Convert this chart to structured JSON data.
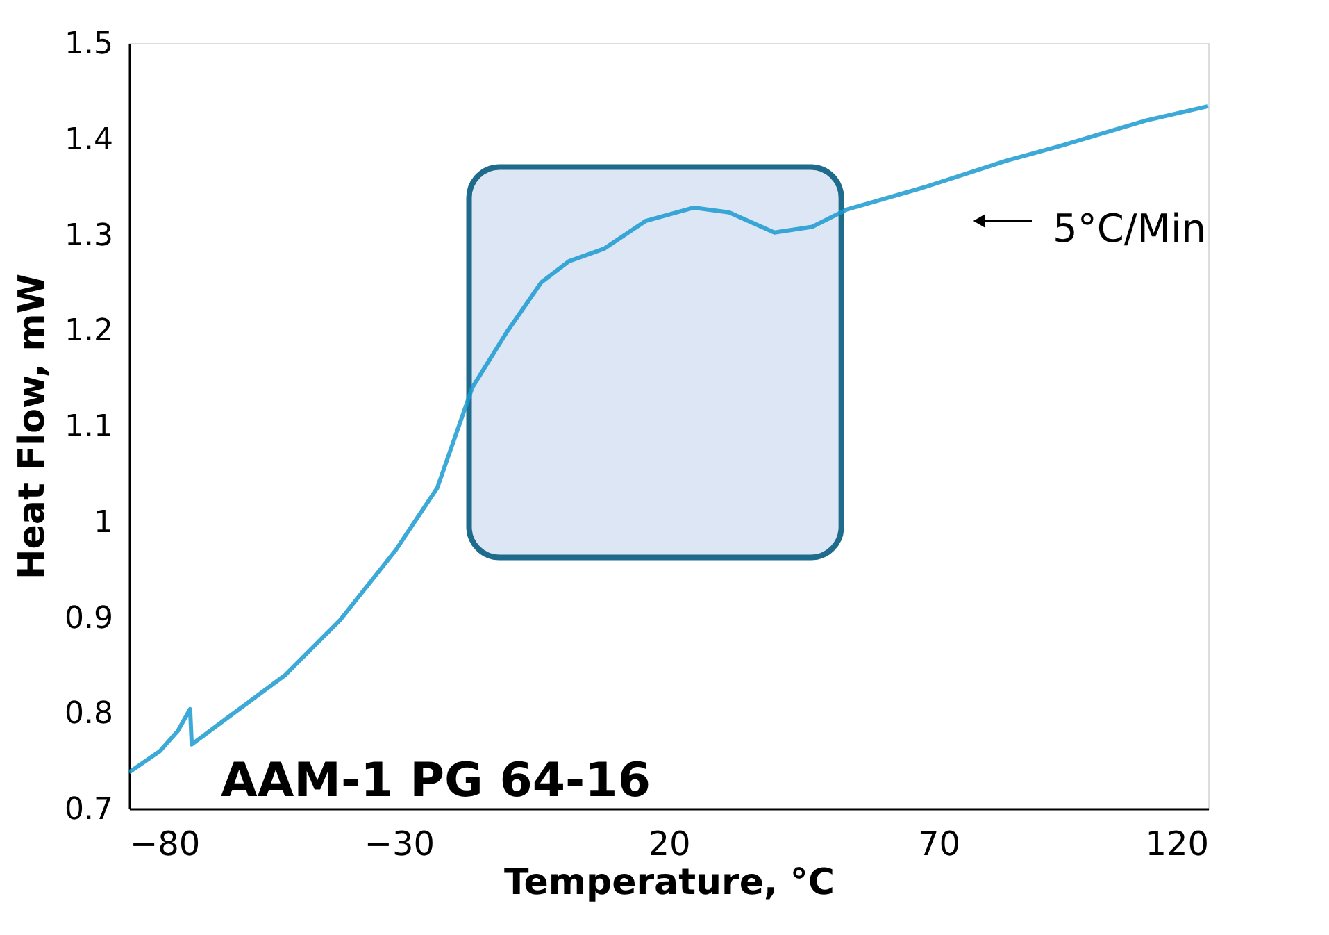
{
  "chart_data": {
    "type": "line",
    "xlabel": "Temperature, °C",
    "ylabel": "Heat Flow, mW",
    "x": [
      -80,
      -74.3,
      -71,
      -68.7,
      -68.4,
      -61.5,
      -51.2,
      -40.9,
      -30.6,
      -22.9,
      -16.4,
      -10,
      -3.6,
      1.5,
      8,
      15.7,
      24.7,
      31.2,
      39.6,
      46.6,
      53,
      67.2,
      82.6,
      92.9,
      108.4,
      120
    ],
    "series": [
      {
        "color": "#1a9ad0",
        "values": [
          0.738,
          0.76,
          0.781,
          0.804,
          0.767,
          0.796,
          0.839,
          0.897,
          0.97,
          1.035,
          1.14,
          1.198,
          1.25,
          1.272,
          1.285,
          1.314,
          1.328,
          1.323,
          1.302,
          1.308,
          1.326,
          1.349,
          1.377,
          1.393,
          1.419,
          1.434
        ]
      }
    ],
    "xlim": [
      -80,
      120
    ],
    "xticks": [
      -80,
      -30,
      20,
      70,
      120
    ],
    "ylim": [
      0.7,
      1.5
    ],
    "yticks": [
      0.7,
      0.8,
      0.9,
      1,
      1.1,
      1.2,
      1.3,
      1.4,
      1.5
    ],
    "grid": false,
    "marker": "none",
    "line_style": "solid",
    "bands": [
      {
        "axis": "x",
        "from": -17,
        "to": 52,
        "color": "#dde6f4"
      }
    ],
    "annotations": [
      "AAM-1 PG 64-16",
      "5°C/Min"
    ]
  }
}
